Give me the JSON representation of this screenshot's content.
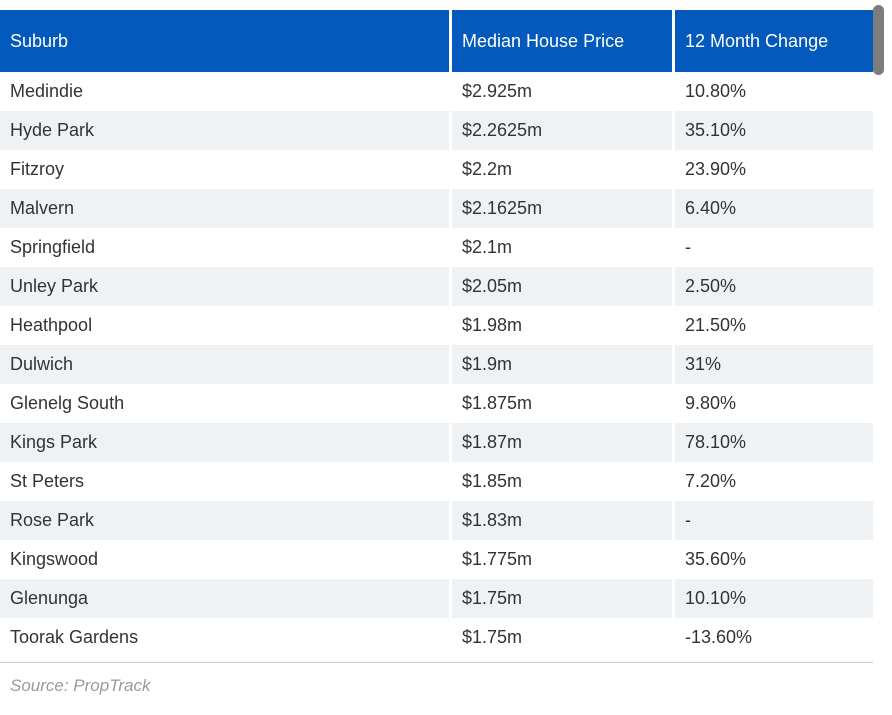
{
  "table": {
    "columns": [
      {
        "label": "Suburb"
      },
      {
        "label": "Median House Price"
      },
      {
        "label": "12 Month Change"
      }
    ],
    "rows": [
      {
        "suburb": "Medindie",
        "price": "$2.925m",
        "change": "10.80%"
      },
      {
        "suburb": "Hyde Park",
        "price": "$2.2625m",
        "change": "35.10%"
      },
      {
        "suburb": "Fitzroy",
        "price": "$2.2m",
        "change": "23.90%"
      },
      {
        "suburb": "Malvern",
        "price": "$2.1625m",
        "change": "6.40%"
      },
      {
        "suburb": "Springfield",
        "price": "$2.1m",
        "change": "-"
      },
      {
        "suburb": "Unley Park",
        "price": "$2.05m",
        "change": "2.50%"
      },
      {
        "suburb": "Heathpool",
        "price": "$1.98m",
        "change": "21.50%"
      },
      {
        "suburb": "Dulwich",
        "price": "$1.9m",
        "change": "31%"
      },
      {
        "suburb": "Glenelg South",
        "price": "$1.875m",
        "change": "9.80%"
      },
      {
        "suburb": "Kings Park",
        "price": "$1.87m",
        "change": "78.10%"
      },
      {
        "suburb": "St Peters",
        "price": "$1.85m",
        "change": "7.20%"
      },
      {
        "suburb": "Rose Park",
        "price": "$1.83m",
        "change": "-"
      },
      {
        "suburb": "Kingswood",
        "price": "$1.775m",
        "change": "35.60%"
      },
      {
        "suburb": "Glenunga",
        "price": "$1.75m",
        "change": "10.10%"
      },
      {
        "suburb": "Toorak Gardens",
        "price": "$1.75m",
        "change": "-13.60%"
      }
    ]
  },
  "footer": {
    "source": "Source: PropTrack"
  },
  "colors": {
    "header_bg": "#0459BD",
    "stripe": "#EFF2F5",
    "text": "#333333",
    "header_text": "#FFFFFF",
    "muted": "#9A9A9A",
    "line": "#CCCCCC",
    "scrollbar": "#7D7D7D"
  },
  "chart_data": {
    "type": "table",
    "title": "",
    "columns": [
      "Suburb",
      "Median House Price",
      "12 Month Change"
    ],
    "categories": [
      "Medindie",
      "Hyde Park",
      "Fitzroy",
      "Malvern",
      "Springfield",
      "Unley Park",
      "Heathpool",
      "Dulwich",
      "Glenelg South",
      "Kings Park",
      "St Peters",
      "Rose Park",
      "Kingswood",
      "Glenunga",
      "Toorak Gardens"
    ],
    "series": [
      {
        "name": "Median House Price ($m)",
        "values": [
          2.925,
          2.2625,
          2.2,
          2.1625,
          2.1,
          2.05,
          1.98,
          1.9,
          1.875,
          1.87,
          1.85,
          1.83,
          1.775,
          1.75,
          1.75
        ]
      },
      {
        "name": "12 Month Change (%)",
        "values": [
          10.8,
          35.1,
          23.9,
          6.4,
          null,
          2.5,
          21.5,
          31,
          9.8,
          78.1,
          7.2,
          null,
          35.6,
          10.1,
          -13.6
        ]
      }
    ],
    "source": "Source: PropTrack"
  }
}
